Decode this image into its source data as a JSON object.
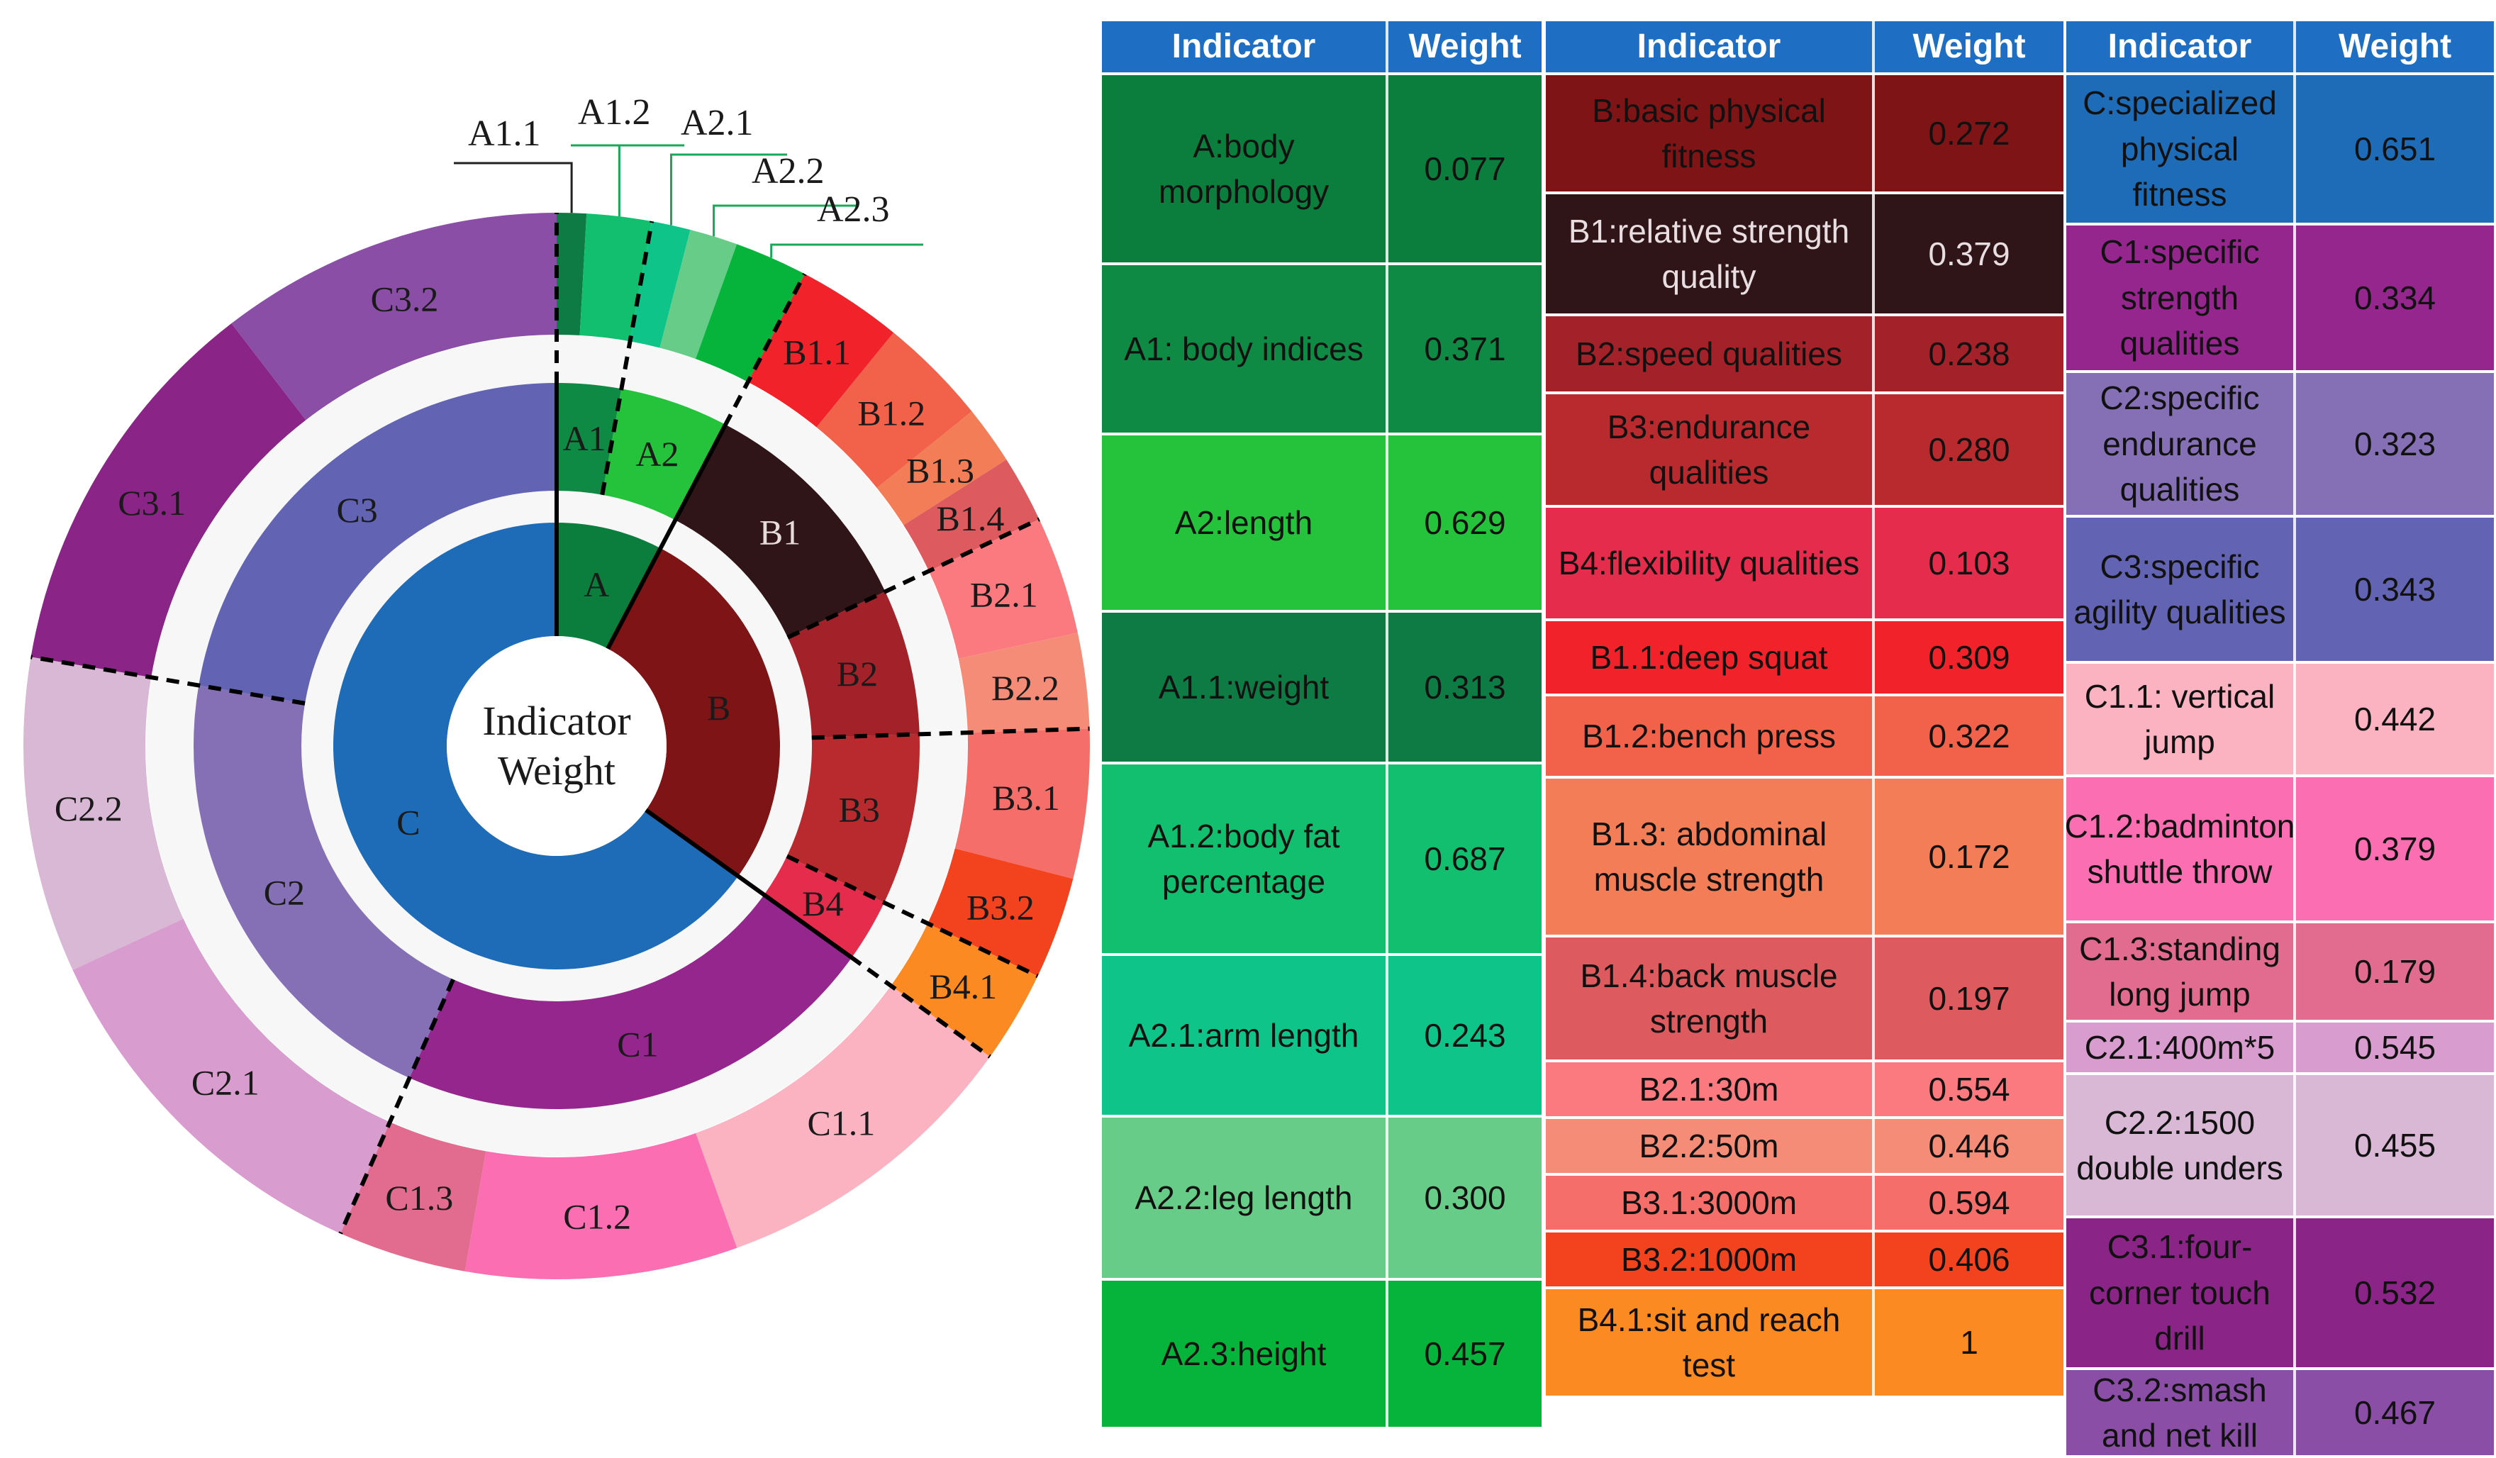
{
  "chart_data": {
    "type": "sunburst",
    "title": "Indicator Weight",
    "center_label": "Indicator Weight",
    "level1": [
      {
        "id": "A",
        "label": "A",
        "weight": 0.077,
        "color": "#0b7d3c"
      },
      {
        "id": "B",
        "label": "B",
        "weight": 0.272,
        "color": "#7e1416"
      },
      {
        "id": "C",
        "label": "C",
        "weight": 0.651,
        "color": "#1e6bb8"
      }
    ],
    "level2": [
      {
        "id": "A1",
        "label": "A1",
        "parent": "A",
        "weight": 0.371,
        "color": "#0f8a44"
      },
      {
        "id": "A2",
        "label": "A2",
        "parent": "A",
        "weight": 0.629,
        "color": "#25c23c"
      },
      {
        "id": "B1",
        "label": "B1",
        "parent": "B",
        "weight": 0.379,
        "color": "#2f1418"
      },
      {
        "id": "B2",
        "label": "B2",
        "parent": "B",
        "weight": 0.238,
        "color": "#a3222a"
      },
      {
        "id": "B3",
        "label": "B3",
        "parent": "B",
        "weight": 0.28,
        "color": "#b82a2e"
      },
      {
        "id": "B4",
        "label": "B4",
        "parent": "B",
        "weight": 0.103,
        "color": "#e62c4c"
      },
      {
        "id": "C1",
        "label": "C1",
        "parent": "C",
        "weight": 0.334,
        "color": "#94268e"
      },
      {
        "id": "C2",
        "label": "C2",
        "parent": "C",
        "weight": 0.323,
        "color": "#8570b6"
      },
      {
        "id": "C3",
        "label": "C3",
        "parent": "C",
        "weight": 0.343,
        "color": "#6263b2"
      }
    ],
    "level3": [
      {
        "id": "A1.1",
        "label": "A1.1",
        "parent": "A1",
        "weight": 0.313,
        "color": "#0e7a44",
        "callout": true
      },
      {
        "id": "A1.2",
        "label": "A1.2",
        "parent": "A1",
        "weight": 0.687,
        "color": "#11bf6e",
        "callout": true
      },
      {
        "id": "A2.1",
        "label": "A2.1",
        "parent": "A2",
        "weight": 0.243,
        "color": "#0ec488",
        "callout": true
      },
      {
        "id": "A2.2",
        "label": "A2.2",
        "parent": "A2",
        "weight": 0.3,
        "color": "#66cc88",
        "callout": true
      },
      {
        "id": "A2.3",
        "label": "A2.3",
        "parent": "A2",
        "weight": 0.457,
        "color": "#06b43c",
        "callout": true
      },
      {
        "id": "B1.1",
        "label": "B1.1",
        "parent": "B1",
        "weight": 0.309,
        "color": "#f2222a"
      },
      {
        "id": "B1.2",
        "label": "B1.2",
        "parent": "B1",
        "weight": 0.322,
        "color": "#f2624a"
      },
      {
        "id": "B1.3",
        "label": "B1.3",
        "parent": "B1",
        "weight": 0.172,
        "color": "#f27d56"
      },
      {
        "id": "B1.4",
        "label": "B1.4",
        "parent": "B1",
        "weight": 0.197,
        "color": "#dd5a5e"
      },
      {
        "id": "B2.1",
        "label": "B2.1",
        "parent": "B2",
        "weight": 0.554,
        "color": "#fb7a80"
      },
      {
        "id": "B2.2",
        "label": "B2.2",
        "parent": "B2",
        "weight": 0.446,
        "color": "#f58c78"
      },
      {
        "id": "B3.1",
        "label": "B3.1",
        "parent": "B3",
        "weight": 0.594,
        "color": "#f66e6a"
      },
      {
        "id": "B3.2",
        "label": "B3.2",
        "parent": "B3",
        "weight": 0.406,
        "color": "#f2421e"
      },
      {
        "id": "B4.1",
        "label": "B4.1",
        "parent": "B4",
        "weight": 1,
        "color": "#fb8a22"
      },
      {
        "id": "C1.1",
        "label": "C1.1",
        "parent": "C1",
        "weight": 0.442,
        "color": "#fbb3c2"
      },
      {
        "id": "C1.2",
        "label": "C1.2",
        "parent": "C1",
        "weight": 0.379,
        "color": "#fb6eb2"
      },
      {
        "id": "C1.3",
        "label": "C1.3",
        "parent": "C1",
        "weight": 0.179,
        "color": "#e26c90"
      },
      {
        "id": "C2.1",
        "label": "C2.1",
        "parent": "C2",
        "weight": 0.545,
        "color": "#d99cce"
      },
      {
        "id": "C2.2",
        "label": "C2.2",
        "parent": "C2",
        "weight": 0.455,
        "color": "#d8b8d4"
      },
      {
        "id": "C3.1",
        "label": "C3.1",
        "parent": "C3",
        "weight": 0.532,
        "color": "#8a2486"
      },
      {
        "id": "C3.2",
        "label": "C3.2",
        "parent": "C3",
        "weight": 0.467,
        "color": "#8a4ea6"
      }
    ]
  },
  "table": {
    "header": {
      "indicator": "Indicator",
      "weight": "Weight",
      "color": "#1e6fc4"
    },
    "columns": [
      {
        "rows": [
          {
            "indicator": "A:body morphology",
            "weight": "0.077",
            "color": "#0b7d3c"
          },
          {
            "indicator": "A1: body indices",
            "weight": "0.371",
            "color": "#0f8a44"
          },
          {
            "indicator": "A2:length",
            "weight": "0.629",
            "color": "#25c23c"
          },
          {
            "indicator": "A1.1:weight",
            "weight": "0.313",
            "color": "#0e7a44"
          },
          {
            "indicator": "A1.2:body fat percentage",
            "weight": "0.687",
            "color": "#11bf6e"
          },
          {
            "indicator": "A2.1:arm length",
            "weight": "0.243",
            "color": "#0ec488"
          },
          {
            "indicator": "A2.2:leg length",
            "weight": "0.300",
            "color": "#66cc88"
          },
          {
            "indicator": "A2.3:height",
            "weight": "0.457",
            "color": "#06b43c"
          }
        ]
      },
      {
        "rows": [
          {
            "indicator": "B:basic physical fitness",
            "weight": "0.272",
            "color": "#7e1416"
          },
          {
            "indicator": "B1:relative strength quality",
            "weight": "0.379",
            "color": "#2f1418"
          },
          {
            "indicator": "B2:speed qualities",
            "weight": "0.238",
            "color": "#a3222a"
          },
          {
            "indicator": "B3:endurance qualities",
            "weight": "0.280",
            "color": "#b82a2e"
          },
          {
            "indicator": "B4:flexibility qualities",
            "weight": "0.103",
            "color": "#e62c4c"
          },
          {
            "indicator": "B1.1:deep squat",
            "weight": "0.309",
            "color": "#f2222a"
          },
          {
            "indicator": "B1.2:bench press",
            "weight": "0.322",
            "color": "#f2624a"
          },
          {
            "indicator": "B1.3: abdominal muscle strength",
            "weight": "0.172",
            "color": "#f27d56"
          },
          {
            "indicator": "B1.4:back muscle strength",
            "weight": "0.197",
            "color": "#dd5a5e"
          },
          {
            "indicator": "B2.1:30m",
            "weight": "0.554",
            "color": "#fb7a80"
          },
          {
            "indicator": "B2.2:50m",
            "weight": "0.446",
            "color": "#f58c78"
          },
          {
            "indicator": "B3.1:3000m",
            "weight": "0.594",
            "color": "#f66e6a"
          },
          {
            "indicator": "B3.2:1000m",
            "weight": "0.406",
            "color": "#f2421e"
          },
          {
            "indicator": "B4.1:sit and reach test",
            "weight": "1",
            "color": "#fb8a22"
          }
        ]
      },
      {
        "rows": [
          {
            "indicator": "C:specialized physical fitness",
            "weight": "0.651",
            "color": "#1e6bb8"
          },
          {
            "indicator": "C1:specific strength qualities",
            "weight": "0.334",
            "color": "#94268e"
          },
          {
            "indicator": "C2:specific endurance qualities",
            "weight": "0.323",
            "color": "#8570b6"
          },
          {
            "indicator": "C3:specific agility qualities",
            "weight": "0.343",
            "color": "#6263b2"
          },
          {
            "indicator": "C1.1: vertical jump",
            "weight": "0.442",
            "color": "#fbb3c2"
          },
          {
            "indicator": "C1.2:badminton shuttle throw",
            "weight": "0.379",
            "color": "#fb6eb2"
          },
          {
            "indicator": "C1.3:standing long jump",
            "weight": "0.179",
            "color": "#e26c90"
          },
          {
            "indicator": "C2.1:400m*5",
            "weight": "0.545",
            "color": "#d99cce"
          },
          {
            "indicator": "C2.2:1500 double unders",
            "weight": "0.455",
            "color": "#d8b8d4"
          },
          {
            "indicator": "C3.1:four-corner touch drill",
            "weight": "0.532",
            "color": "#8a2486"
          },
          {
            "indicator": "C3.2:smash and net kill",
            "weight": "0.467",
            "color": "#8a4ea6"
          }
        ]
      }
    ]
  }
}
